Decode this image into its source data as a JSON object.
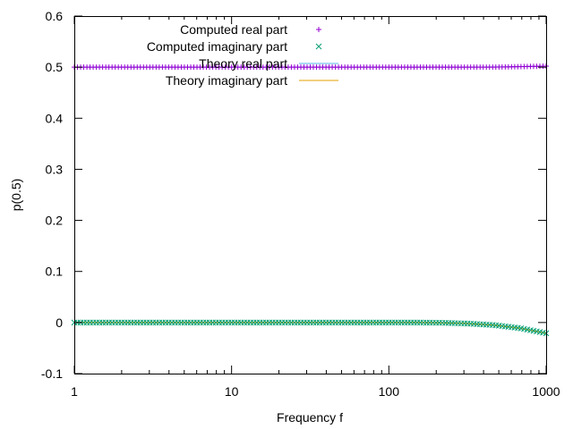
{
  "chart_data": {
    "type": "scatter",
    "xlabel": "Frequency f",
    "ylabel": "p(0.5)",
    "x_scale": "log",
    "xlim": [
      1,
      1000
    ],
    "ylim": [
      -0.1,
      0.6
    ],
    "x_ticks": [
      1,
      10,
      100,
      1000
    ],
    "x_tick_labels": [
      "1",
      "10",
      "100",
      "1000"
    ],
    "y_ticks": [
      -0.1,
      0,
      0.1,
      0.2,
      0.3,
      0.4,
      0.5,
      0.6
    ],
    "y_tick_labels": [
      "-0.1",
      "0",
      "0.1",
      "0.2",
      "0.3",
      "0.4",
      "0.5",
      "0.6"
    ],
    "grid": false,
    "legend_position": "top-left",
    "series": [
      {
        "name": "Computed real part",
        "marker": "plus",
        "color": "#9400d3",
        "x": [
          1,
          1.47,
          2.15,
          3.16,
          4.64,
          6.81,
          10,
          14.7,
          21.5,
          31.6,
          46.4,
          68.1,
          100,
          147,
          215,
          316,
          464,
          681,
          1000
        ],
        "y": [
          0.5,
          0.5,
          0.5,
          0.5,
          0.5,
          0.5,
          0.5,
          0.5,
          0.5,
          0.5,
          0.5,
          0.5,
          0.5,
          0.5,
          0.5,
          0.5,
          0.5,
          0.501,
          0.502
        ]
      },
      {
        "name": "Computed imaginary part",
        "marker": "cross",
        "color": "#009e73",
        "x": [
          1,
          1.47,
          2.15,
          3.16,
          4.64,
          6.81,
          10,
          14.7,
          21.5,
          31.6,
          46.4,
          68.1,
          100,
          147,
          215,
          316,
          464,
          681,
          1000
        ],
        "y": [
          0,
          0,
          0,
          0,
          0,
          0,
          0,
          0,
          0,
          0,
          0,
          0,
          0,
          0,
          -0.0005,
          -0.002,
          -0.005,
          -0.011,
          -0.021
        ]
      },
      {
        "name": "Theory real part",
        "marker": "line",
        "color": "#56b4e9",
        "x": [
          1,
          10,
          100,
          316,
          681,
          1000
        ],
        "y": [
          0.5,
          0.5,
          0.5,
          0.5,
          0.501,
          0.502
        ]
      },
      {
        "name": "Theory imaginary part",
        "marker": "line",
        "color": "#e69f00",
        "x": [
          1,
          10,
          100,
          147,
          215,
          316,
          464,
          681,
          1000
        ],
        "y": [
          0,
          0,
          0,
          0,
          -0.0005,
          -0.002,
          -0.005,
          -0.011,
          -0.021
        ]
      }
    ]
  }
}
